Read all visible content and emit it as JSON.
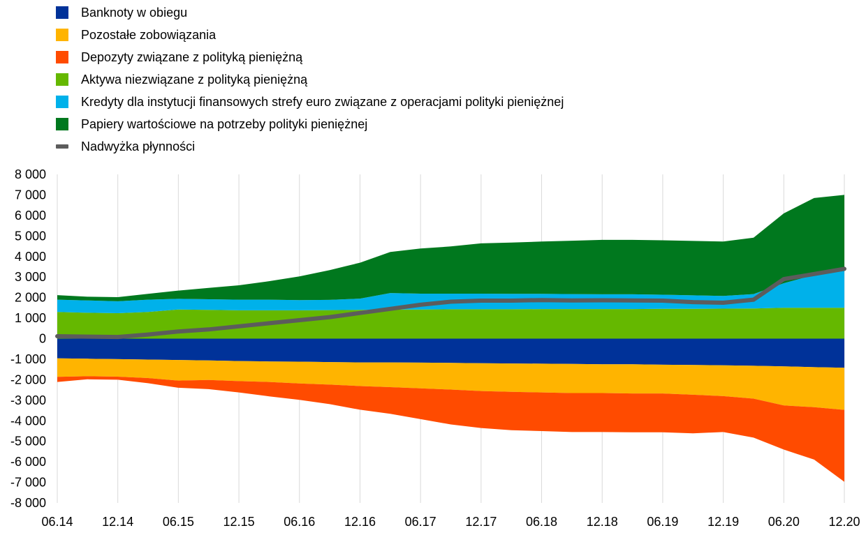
{
  "chart_data": {
    "type": "area",
    "title": "",
    "xlabel": "",
    "ylabel": "",
    "ylim": [
      -8000,
      8000
    ],
    "yticks": [
      8000,
      7000,
      6000,
      5000,
      4000,
      3000,
      2000,
      1000,
      0,
      -1000,
      -2000,
      -3000,
      -4000,
      -5000,
      -6000,
      -7000,
      -8000
    ],
    "ytick_labels": [
      "8 000",
      "7 000",
      "6 000",
      "5 000",
      "4 000",
      "3 000",
      "2 000",
      "1 000",
      "0",
      "-1 000",
      "-2 000",
      "-3 000",
      "-4 000",
      "-5 000",
      "-6 000",
      "-7 000",
      "-8 000"
    ],
    "xtick_labels": [
      "06.14",
      "12.14",
      "06.15",
      "12.15",
      "06.16",
      "12.16",
      "06.17",
      "12.17",
      "06.18",
      "12.18",
      "06.19",
      "12.19",
      "06.20",
      "12.20"
    ],
    "grid": "vertical",
    "legend_position": "top-left",
    "x": [
      "2014-06",
      "2014-09",
      "2014-12",
      "2015-03",
      "2015-06",
      "2015-09",
      "2015-12",
      "2016-03",
      "2016-06",
      "2016-09",
      "2016-12",
      "2017-03",
      "2017-06",
      "2017-09",
      "2017-12",
      "2018-03",
      "2018-06",
      "2018-09",
      "2018-12",
      "2019-03",
      "2019-06",
      "2019-09",
      "2019-12",
      "2020-03",
      "2020-06",
      "2020-09",
      "2020-12"
    ],
    "series": [
      {
        "name": "Banknoty w obiegu",
        "side": "negative",
        "color": "#003299",
        "values": [
          -960,
          -980,
          -1000,
          -1020,
          -1040,
          -1060,
          -1090,
          -1110,
          -1120,
          -1140,
          -1160,
          -1160,
          -1170,
          -1180,
          -1200,
          -1210,
          -1220,
          -1230,
          -1250,
          -1250,
          -1270,
          -1280,
          -1300,
          -1320,
          -1350,
          -1390,
          -1420
        ]
      },
      {
        "name": "Pozostałe zobowiązania",
        "side": "negative",
        "color": "#ffb400",
        "values": [
          -900,
          -850,
          -850,
          -900,
          -1000,
          -950,
          -980,
          -1000,
          -1060,
          -1100,
          -1150,
          -1200,
          -1250,
          -1300,
          -1350,
          -1380,
          -1400,
          -1420,
          -1400,
          -1420,
          -1400,
          -1450,
          -1500,
          -1600,
          -1900,
          -1950,
          -2050
        ]
      },
      {
        "name": "Depozyty związane z polityką pieniężną",
        "side": "negative",
        "color": "#ff4b00",
        "values": [
          -250,
          -150,
          -150,
          -250,
          -350,
          -450,
          -550,
          -700,
          -800,
          -950,
          -1150,
          -1300,
          -1500,
          -1700,
          -1800,
          -1870,
          -1880,
          -1900,
          -1900,
          -1890,
          -1890,
          -1880,
          -1750,
          -1900,
          -2150,
          -2550,
          -3500
        ]
      },
      {
        "name": "Aktywa niezwiązane z polityką pieniężną",
        "side": "positive",
        "color": "#65b800",
        "values": [
          1300,
          1260,
          1240,
          1300,
          1420,
          1400,
          1380,
          1380,
          1380,
          1390,
          1400,
          1420,
          1420,
          1430,
          1430,
          1430,
          1440,
          1440,
          1440,
          1440,
          1450,
          1450,
          1460,
          1470,
          1500,
          1500,
          1500
        ]
      },
      {
        "name": "Kredyty dla instytucji finansowych strefy euro związane z operacjami polityki pieniężnej",
        "side": "positive",
        "color": "#00b1ea",
        "values": [
          600,
          600,
          580,
          600,
          520,
          520,
          520,
          520,
          500,
          500,
          550,
          800,
          770,
          760,
          760,
          750,
          740,
          730,
          720,
          720,
          690,
          660,
          620,
          700,
          1200,
          1600,
          1850
        ]
      },
      {
        "name": "Papiery wartościowe na potrzeby polityki pieniężnej",
        "side": "positive",
        "color": "#00781e",
        "values": [
          220,
          180,
          200,
          280,
          400,
          550,
          700,
          900,
          1150,
          1450,
          1750,
          2000,
          2200,
          2300,
          2450,
          2500,
          2550,
          2600,
          2650,
          2650,
          2650,
          2650,
          2650,
          2750,
          3400,
          3750,
          3650
        ]
      },
      {
        "name": "Nadwyżka płynności",
        "type": "line",
        "color": "#5c5c5c",
        "values": [
          120,
          100,
          80,
          200,
          350,
          450,
          600,
          750,
          900,
          1050,
          1250,
          1450,
          1650,
          1800,
          1850,
          1850,
          1880,
          1860,
          1870,
          1860,
          1850,
          1780,
          1750,
          1900,
          2900,
          3150,
          3400
        ]
      }
    ]
  }
}
